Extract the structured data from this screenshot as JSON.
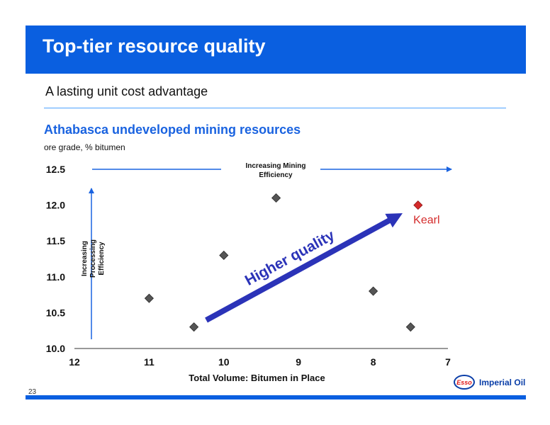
{
  "slide": {
    "title": "Top-tier resource quality",
    "subtitle": "A lasting unit cost advantage",
    "page_number": "23",
    "logo_badge": "Esso",
    "logo_text": "Imperial Oil"
  },
  "colors": {
    "banner": "#0a5fe0",
    "accent_title": "#1a63e0",
    "arrow": "#2b33b8",
    "marker": "#555555",
    "highlight": "#d42a2a"
  },
  "chart_data": {
    "type": "scatter",
    "title": "Athabasca undeveloped mining resources",
    "subtitle": "ore grade, % bitumen",
    "xlabel": "Total Volume: Bitumen in Place",
    "ylabel": "",
    "x_reversed": true,
    "xlim": [
      12,
      7
    ],
    "ylim": [
      10.0,
      12.5
    ],
    "x_ticks": [
      "12",
      "11",
      "10",
      "9",
      "8",
      "7"
    ],
    "y_ticks": [
      "10.0",
      "10.5",
      "11.0",
      "11.5",
      "12.0",
      "12.5"
    ],
    "points": [
      {
        "x": 11.0,
        "y": 10.7,
        "highlight": false
      },
      {
        "x": 10.4,
        "y": 10.3,
        "highlight": false
      },
      {
        "x": 10.0,
        "y": 11.3,
        "highlight": false
      },
      {
        "x": 9.3,
        "y": 12.1,
        "highlight": false
      },
      {
        "x": 8.0,
        "y": 10.8,
        "highlight": false
      },
      {
        "x": 7.5,
        "y": 10.3,
        "highlight": false
      },
      {
        "x": 7.4,
        "y": 12.0,
        "highlight": true,
        "label": "Kearl"
      }
    ],
    "annotations": {
      "mining_line1": "Increasing Mining",
      "mining_line2": "Efficiency",
      "processing_line1": "Increasing",
      "processing_line2": "Processing",
      "processing_line3": "Efficiency",
      "quality": "Higher quality"
    },
    "grid": false
  }
}
